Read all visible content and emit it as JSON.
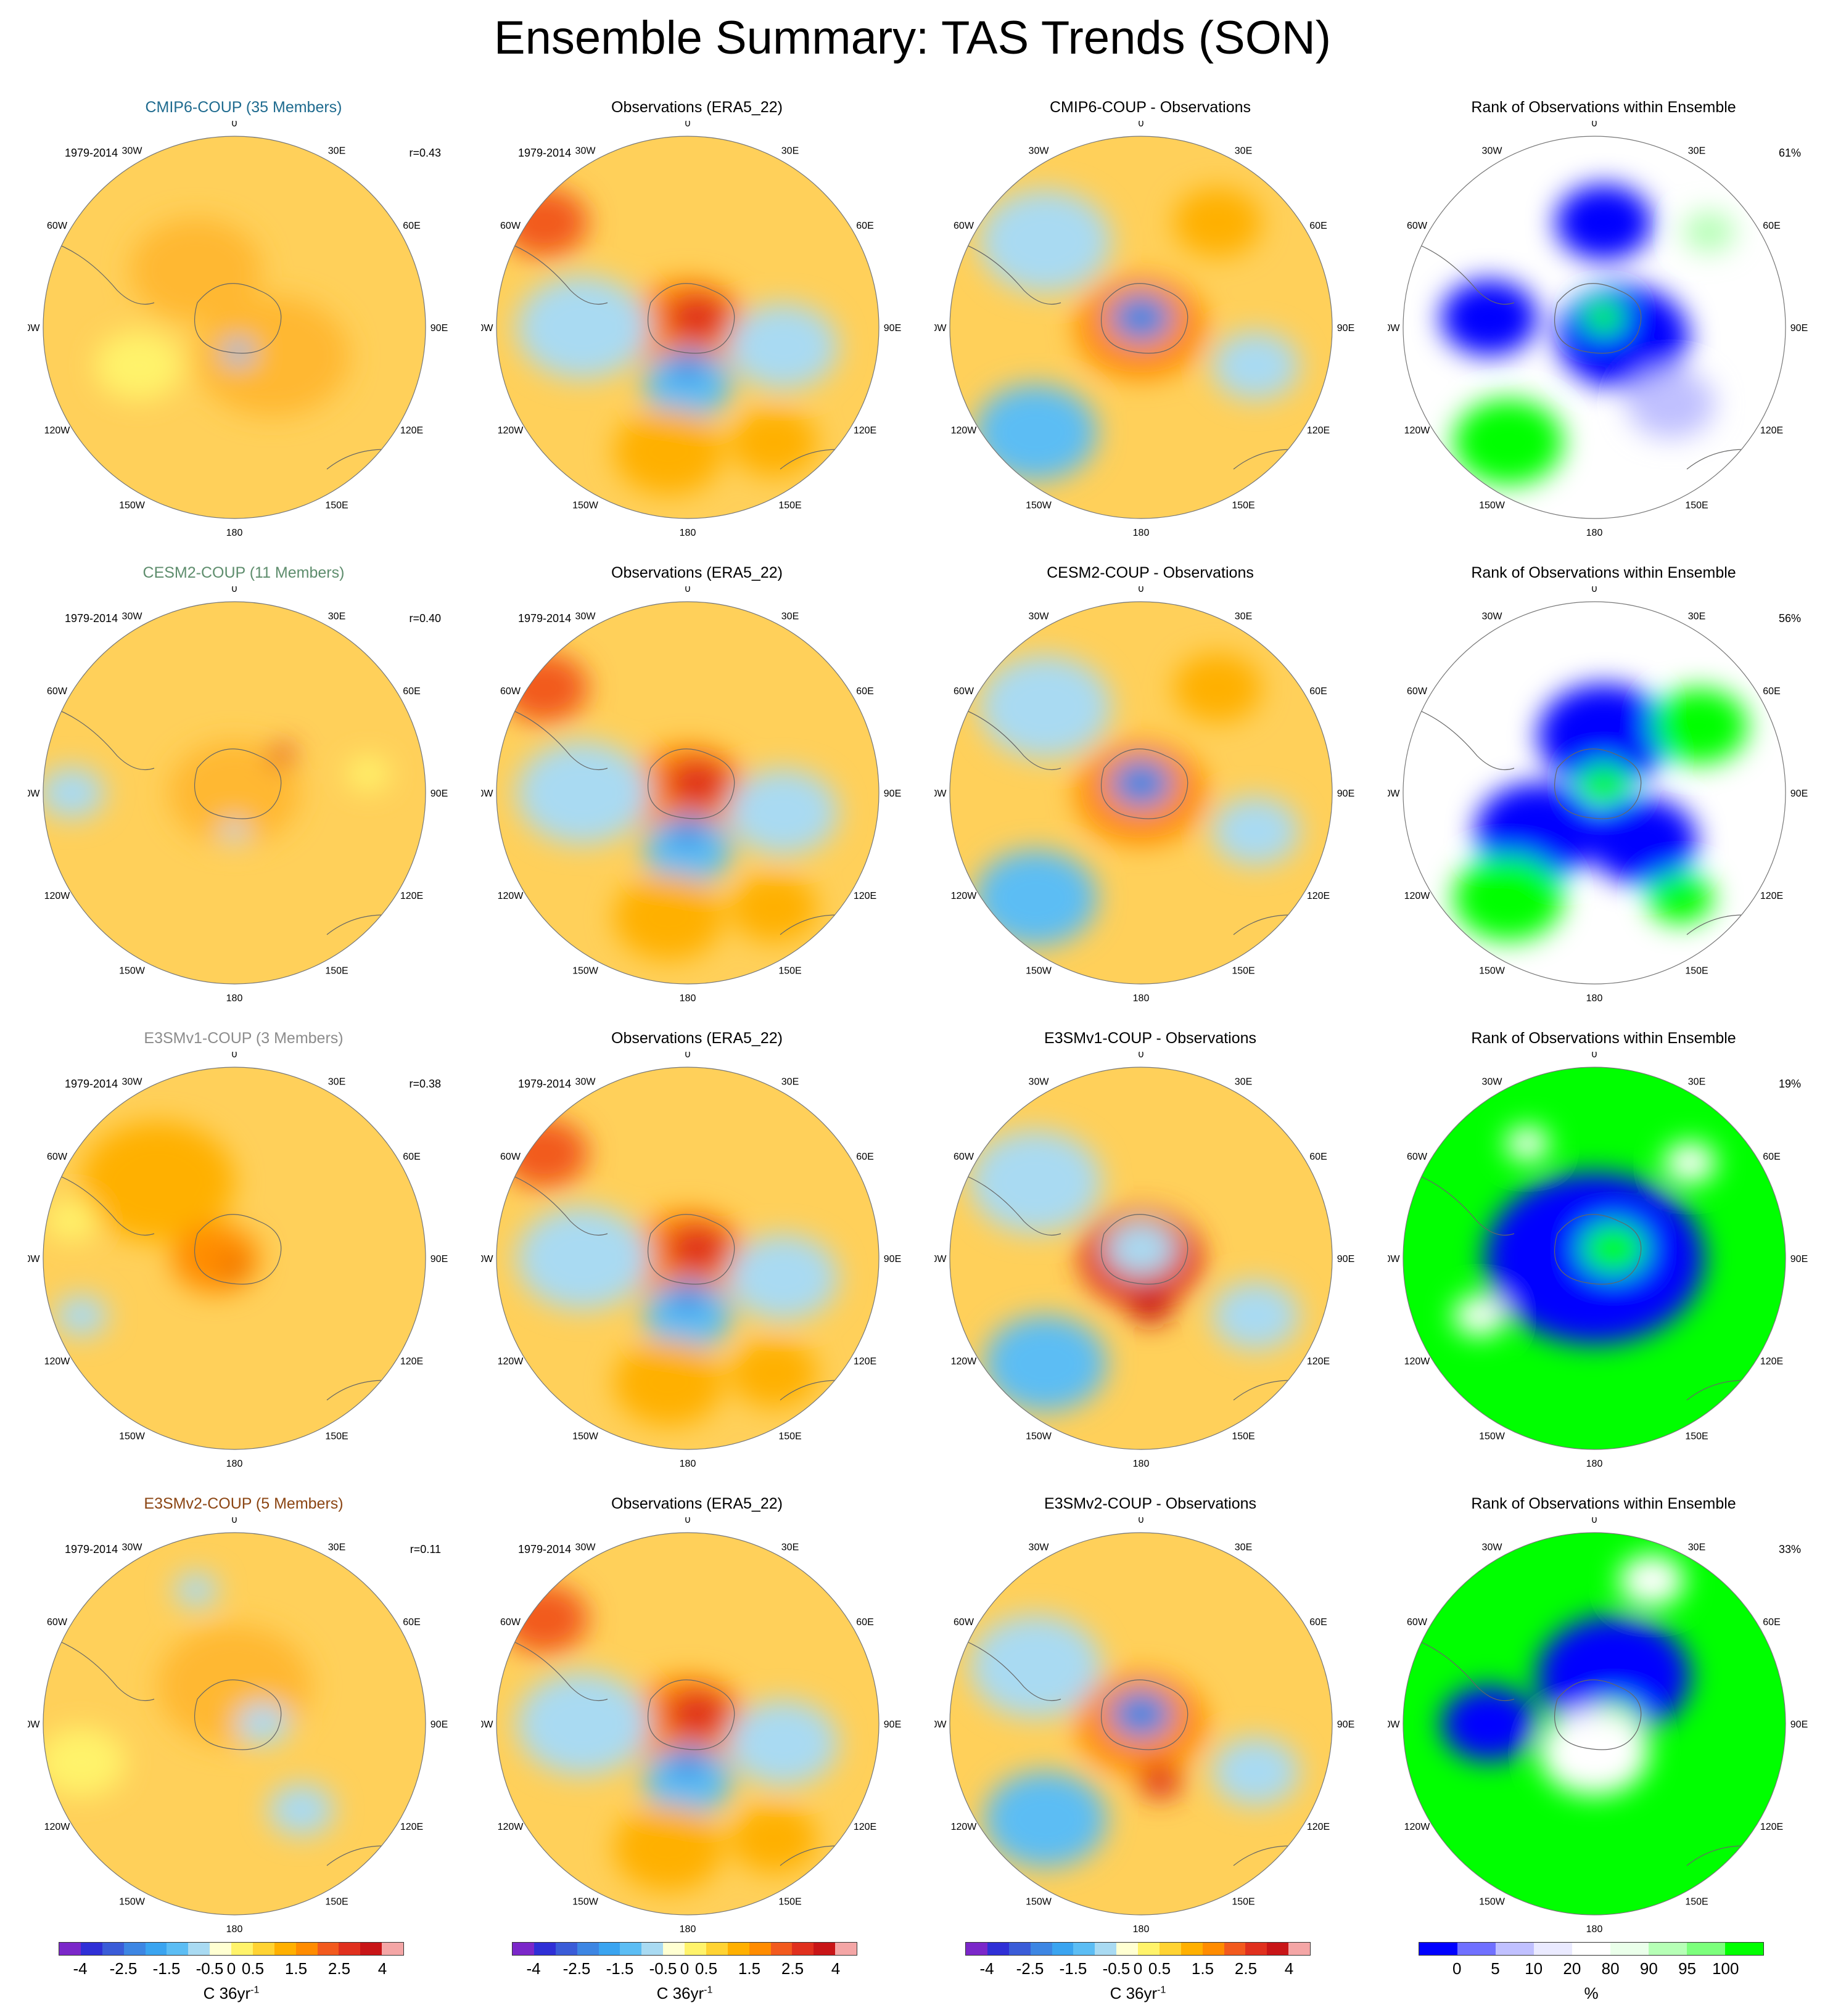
{
  "title": "Ensemble Summary: TAS Trends (SON)",
  "lon_labels": {
    "n": "0",
    "ne": "30E",
    "e1": "60E",
    "e": "90E",
    "e2": "120E",
    "se": "150E",
    "s": "180",
    "sw": "150W",
    "w2": "120W",
    "w": "90W",
    "w1": "60W",
    "nw": "30W"
  },
  "palettes": {
    "trend": [
      "#7b27c9",
      "#2f2fd6",
      "#3a5cd8",
      "#3d86e3",
      "#3aa4f0",
      "#5cbdf4",
      "#a9daf2",
      "#ffffd2",
      "#fff36b",
      "#ffd333",
      "#ffb000",
      "#ff8c00",
      "#f25a1e",
      "#e0301e",
      "#c81517",
      "#f4a6a6"
    ],
    "rank": [
      "#0000ff",
      "#7070ff",
      "#c0c0ff",
      "#eaeaff",
      "#ffffff",
      "#eaffea",
      "#b6ffb6",
      "#7cff7c",
      "#00ff00"
    ]
  },
  "rows": [
    {
      "model": {
        "title": "CMIP6-COUP (35 Members)",
        "title_color": "#1f6b8f",
        "period": "1979-2014",
        "corr": "r=0.43",
        "base": "#ffd05a",
        "blobs": [
          [
            "#ffb830",
            0.2,
            0.15,
            0.35
          ],
          [
            "#ffb830",
            -0.2,
            -0.3,
            0.3
          ],
          [
            "#fff36b",
            -0.5,
            0.2,
            0.2
          ],
          [
            "#5cbdf4",
            0.02,
            0.13,
            0.07
          ]
        ]
      },
      "obs": {
        "title": "Observations (ERA5_22)",
        "period": "1979-2014",
        "base": "#ffd05a",
        "blobs": [
          [
            "#ff8c00",
            0.0,
            0.0,
            0.28
          ],
          [
            "#e0301e",
            0.05,
            -0.05,
            0.15
          ],
          [
            "#5cbdf4",
            0.0,
            0.3,
            0.2
          ],
          [
            "#a9daf2",
            -0.55,
            0.0,
            0.3
          ],
          [
            "#a9daf2",
            0.5,
            0.1,
            0.25
          ],
          [
            "#f25a1e",
            -0.75,
            -0.55,
            0.2
          ],
          [
            "#ffb000",
            -0.1,
            0.65,
            0.25
          ],
          [
            "#ffb000",
            0.45,
            0.6,
            0.2
          ],
          [
            "#3d86e3",
            0.0,
            0.2,
            0.08
          ]
        ]
      },
      "diff": {
        "title": "CMIP6-COUP - Observations",
        "base": "#ffd05a",
        "blobs": [
          [
            "#a9daf2",
            -0.5,
            -0.45,
            0.3
          ],
          [
            "#5cbdf4",
            -0.55,
            0.55,
            0.28
          ],
          [
            "#ff8c00",
            0.0,
            0.0,
            0.3
          ],
          [
            "#3d86e3",
            0.0,
            -0.05,
            0.14
          ],
          [
            "#a9daf2",
            0.6,
            0.2,
            0.2
          ],
          [
            "#ffb000",
            0.4,
            -0.55,
            0.2
          ]
        ]
      },
      "rank": {
        "title": "Rank of Observations within Ensemble",
        "pct": "61%",
        "base": "#ffffff",
        "blobs": [
          [
            "#0000ff",
            0.05,
            -0.55,
            0.22
          ],
          [
            "#0000ff",
            0.15,
            0.05,
            0.3
          ],
          [
            "#0000ff",
            -0.55,
            -0.05,
            0.22
          ],
          [
            "#00ff00",
            -0.45,
            0.6,
            0.25
          ],
          [
            "#00ff00",
            0.05,
            -0.05,
            0.1
          ],
          [
            "#b6ffb6",
            0.6,
            -0.5,
            0.12
          ],
          [
            "#c0c0ff",
            0.4,
            0.4,
            0.2
          ]
        ]
      }
    },
    {
      "model": {
        "title": "CESM2-COUP (11 Members)",
        "title_color": "#5e8d6d",
        "period": "1979-2014",
        "corr": "r=0.40",
        "base": "#ffd05a",
        "blobs": [
          [
            "#ffb830",
            0.0,
            0.0,
            0.3
          ],
          [
            "#e0301e",
            0.25,
            -0.2,
            0.06
          ],
          [
            "#a9daf2",
            -0.85,
            0.0,
            0.15
          ],
          [
            "#fff36b",
            0.7,
            -0.1,
            0.1
          ],
          [
            "#a9daf2",
            0.0,
            0.2,
            0.06
          ]
        ]
      },
      "obs": {
        "title": "Observations (ERA5_22)",
        "period": "1979-2014",
        "base": "#ffd05a",
        "blobs": [
          [
            "#ff8c00",
            0.0,
            0.0,
            0.28
          ],
          [
            "#e0301e",
            0.05,
            -0.05,
            0.15
          ],
          [
            "#5cbdf4",
            0.0,
            0.3,
            0.2
          ],
          [
            "#a9daf2",
            -0.55,
            0.0,
            0.3
          ],
          [
            "#a9daf2",
            0.5,
            0.1,
            0.25
          ],
          [
            "#f25a1e",
            -0.75,
            -0.55,
            0.2
          ],
          [
            "#ffb000",
            -0.1,
            0.65,
            0.25
          ],
          [
            "#ffb000",
            0.45,
            0.6,
            0.2
          ],
          [
            "#3d86e3",
            0.0,
            0.2,
            0.08
          ]
        ]
      },
      "diff": {
        "title": "CESM2-COUP - Observations",
        "base": "#ffd05a",
        "blobs": [
          [
            "#a9daf2",
            -0.5,
            -0.45,
            0.3
          ],
          [
            "#5cbdf4",
            -0.55,
            0.55,
            0.28
          ],
          [
            "#ff8c00",
            0.0,
            0.0,
            0.3
          ],
          [
            "#3d86e3",
            0.0,
            -0.05,
            0.14
          ],
          [
            "#a9daf2",
            0.6,
            0.2,
            0.2
          ],
          [
            "#ffb000",
            0.4,
            -0.55,
            0.2
          ]
        ]
      },
      "rank": {
        "title": "Rank of Observations within Ensemble",
        "pct": "56%",
        "base": "#ffffff",
        "blobs": [
          [
            "#0000ff",
            0.05,
            -0.3,
            0.3
          ],
          [
            "#0000ff",
            -0.3,
            0.2,
            0.28
          ],
          [
            "#0000ff",
            0.25,
            0.25,
            0.25
          ],
          [
            "#00ff00",
            -0.45,
            0.55,
            0.25
          ],
          [
            "#00ff00",
            0.55,
            -0.35,
            0.22
          ],
          [
            "#00ff00",
            0.05,
            -0.05,
            0.12
          ],
          [
            "#00ff00",
            0.45,
            0.55,
            0.15
          ]
        ]
      }
    },
    {
      "model": {
        "title": "E3SMv1-COUP (3 Members)",
        "title_color": "#8c8c8c",
        "period": "1979-2014",
        "corr": "r=0.38",
        "base": "#ffd05a",
        "blobs": [
          [
            "#ffb000",
            -0.4,
            -0.4,
            0.35
          ],
          [
            "#ff8c00",
            -0.1,
            0.0,
            0.2
          ],
          [
            "#c81517",
            0.0,
            0.05,
            0.04
          ],
          [
            "#a9daf2",
            -0.8,
            0.3,
            0.12
          ],
          [
            "#fff36b",
            -0.85,
            -0.2,
            0.12
          ]
        ]
      },
      "obs": {
        "title": "Observations (ERA5_22)",
        "period": "1979-2014",
        "base": "#ffd05a",
        "blobs": [
          [
            "#ff8c00",
            0.0,
            0.0,
            0.28
          ],
          [
            "#e0301e",
            0.05,
            -0.05,
            0.15
          ],
          [
            "#5cbdf4",
            0.0,
            0.3,
            0.2
          ],
          [
            "#a9daf2",
            -0.55,
            0.0,
            0.3
          ],
          [
            "#a9daf2",
            0.5,
            0.1,
            0.25
          ],
          [
            "#f25a1e",
            -0.75,
            -0.55,
            0.2
          ],
          [
            "#ffb000",
            -0.1,
            0.65,
            0.25
          ],
          [
            "#ffb000",
            0.45,
            0.6,
            0.2
          ],
          [
            "#3d86e3",
            0.0,
            0.2,
            0.08
          ]
        ]
      },
      "diff": {
        "title": "E3SMv1-COUP - Observations",
        "base": "#ffd05a",
        "blobs": [
          [
            "#a9daf2",
            -0.55,
            -0.4,
            0.3
          ],
          [
            "#5cbdf4",
            -0.5,
            0.55,
            0.28
          ],
          [
            "#e0301e",
            0.0,
            0.0,
            0.28
          ],
          [
            "#a9daf2",
            0.0,
            -0.05,
            0.16
          ],
          [
            "#c81517",
            0.05,
            0.25,
            0.1
          ],
          [
            "#a9daf2",
            0.6,
            0.3,
            0.2
          ]
        ]
      },
      "rank": {
        "title": "Rank of Observations within Ensemble",
        "pct": "19%",
        "base": "#00ff00",
        "blobs": [
          [
            "#0000ff",
            0.0,
            0.0,
            0.5
          ],
          [
            "#00ff00",
            0.1,
            -0.05,
            0.15
          ],
          [
            "#ffffff",
            -0.6,
            0.3,
            0.12
          ],
          [
            "#ffffff",
            0.5,
            -0.5,
            0.12
          ],
          [
            "#ffffff",
            -0.35,
            -0.6,
            0.1
          ]
        ]
      }
    },
    {
      "model": {
        "title": "E3SMv2-COUP (5 Members)",
        "title_color": "#8b4513",
        "period": "1979-2014",
        "corr": "r=0.11",
        "base": "#ffd05a",
        "blobs": [
          [
            "#ffb830",
            0.0,
            -0.2,
            0.35
          ],
          [
            "#fff36b",
            -0.8,
            0.2,
            0.2
          ],
          [
            "#a9daf2",
            0.15,
            0.0,
            0.12
          ],
          [
            "#a9daf2",
            0.35,
            0.45,
            0.15
          ],
          [
            "#a9daf2",
            -0.2,
            -0.7,
            0.1
          ]
        ]
      },
      "obs": {
        "title": "Observations (ERA5_22)",
        "period": "1979-2014",
        "base": "#ffd05a",
        "blobs": [
          [
            "#ff8c00",
            0.0,
            0.0,
            0.28
          ],
          [
            "#e0301e",
            0.05,
            -0.05,
            0.15
          ],
          [
            "#5cbdf4",
            0.0,
            0.3,
            0.2
          ],
          [
            "#a9daf2",
            -0.55,
            0.0,
            0.3
          ],
          [
            "#a9daf2",
            0.5,
            0.1,
            0.25
          ],
          [
            "#f25a1e",
            -0.75,
            -0.55,
            0.2
          ],
          [
            "#ffb000",
            -0.1,
            0.65,
            0.25
          ],
          [
            "#ffb000",
            0.45,
            0.6,
            0.2
          ],
          [
            "#3d86e3",
            0.0,
            0.2,
            0.08
          ]
        ]
      },
      "diff": {
        "title": "E3SMv2-COUP - Observations",
        "base": "#ffd05a",
        "blobs": [
          [
            "#a9daf2",
            -0.55,
            -0.3,
            0.3
          ],
          [
            "#5cbdf4",
            -0.5,
            0.5,
            0.28
          ],
          [
            "#ff8c00",
            0.0,
            0.0,
            0.3
          ],
          [
            "#3d86e3",
            0.0,
            -0.05,
            0.14
          ],
          [
            "#e0301e",
            0.1,
            0.3,
            0.1
          ],
          [
            "#a9daf2",
            0.6,
            0.25,
            0.2
          ]
        ]
      },
      "rank": {
        "title": "Rank of Observations within Ensemble",
        "pct": "33%",
        "base": "#00ff00",
        "blobs": [
          [
            "#0000ff",
            0.1,
            -0.25,
            0.35
          ],
          [
            "#0000ff",
            -0.55,
            0.0,
            0.22
          ],
          [
            "#00ff00",
            0.1,
            0.0,
            0.14
          ],
          [
            "#ffffff",
            0.0,
            0.15,
            0.25
          ],
          [
            "#ffffff",
            0.3,
            -0.75,
            0.15
          ]
        ]
      }
    }
  ],
  "colorbars": {
    "trend": {
      "ticks": [
        "-4",
        "-2.5",
        "-1.5",
        "-0.5",
        "0",
        "0.5",
        "1.5",
        "2.5",
        "4"
      ],
      "unit": "C 36yr",
      "unit_exp": "-1"
    },
    "rank": {
      "ticks": [
        "0",
        "5",
        "10",
        "20",
        "80",
        "90",
        "95",
        "100"
      ],
      "unit": "%"
    }
  }
}
